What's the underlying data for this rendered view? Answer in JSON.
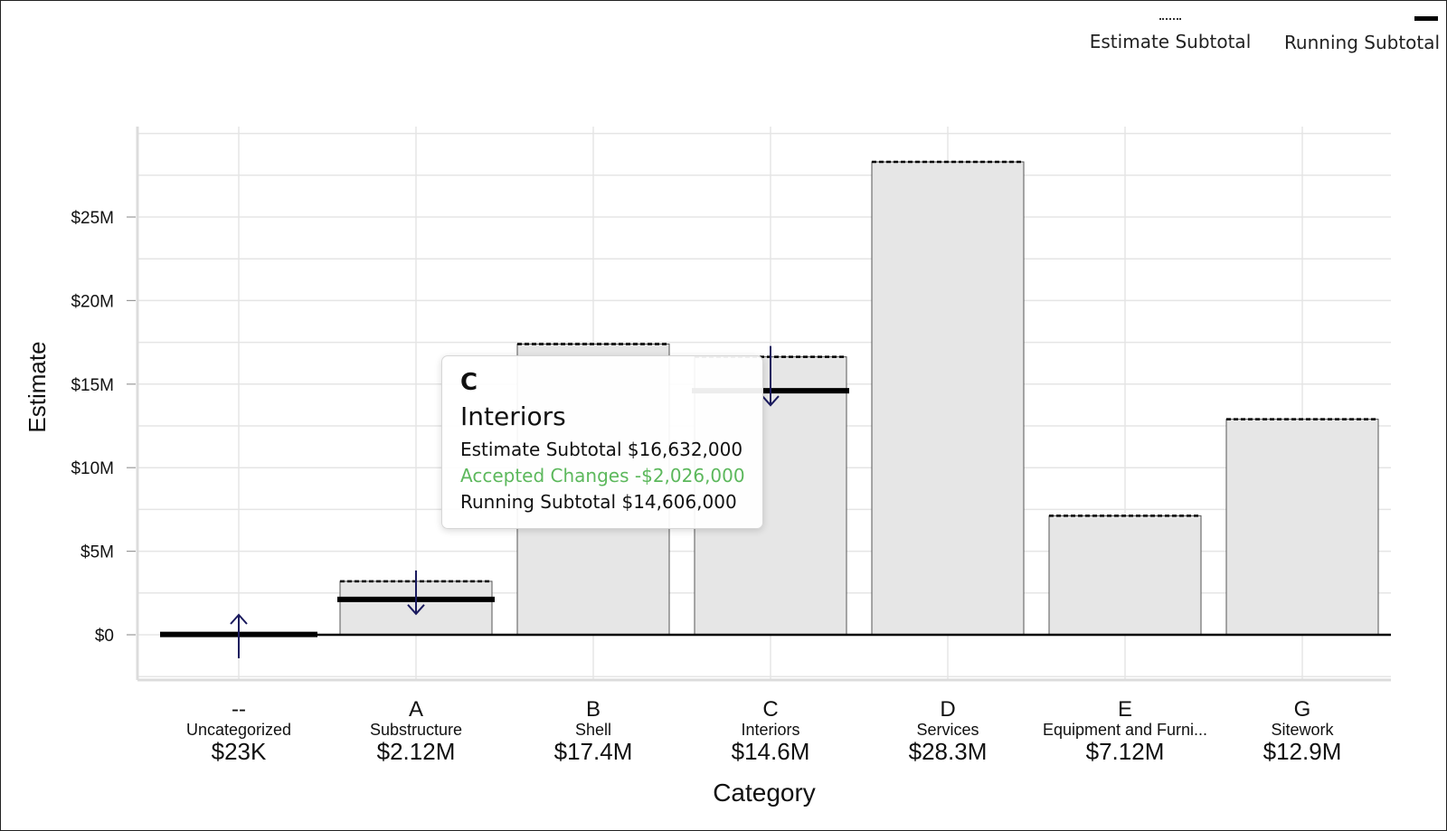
{
  "legend": {
    "estimate_label": "Estimate Subtotal",
    "running_label": "Running Subtotal"
  },
  "tooltip": {
    "code": "C",
    "name": "Interiors",
    "estimate_line": "Estimate Subtotal $16,632,000",
    "accepted_line": "Accepted Changes -$2,026,000",
    "running_line": "Running Subtotal $14,606,000"
  },
  "colors": {
    "bar_fill": "#e6e6e6",
    "bar_stroke": "#555555",
    "grid": "#e5e5e5",
    "running": "#000000",
    "arrow": "#1a1a5e",
    "accepted_text": "#5cb85c"
  },
  "chart_data": {
    "type": "bar",
    "xlabel": "Category",
    "ylabel": "Estimate",
    "ylim": [
      -2.8,
      30
    ],
    "y_ticks": [
      0,
      5,
      10,
      15,
      20,
      25
    ],
    "y_tick_labels": [
      "$0",
      "$5M",
      "$10M",
      "$15M",
      "$20M",
      "$25M"
    ],
    "unit": "millions USD",
    "grid": true,
    "legend_position": "top-right",
    "categories": [
      {
        "code": "--",
        "name": "Uncategorized",
        "total": "$23K"
      },
      {
        "code": "A",
        "name": "Substructure",
        "total": "$2.12M"
      },
      {
        "code": "B",
        "name": "Shell",
        "total": "$17.4M"
      },
      {
        "code": "C",
        "name": "Interiors",
        "total": "$14.6M"
      },
      {
        "code": "D",
        "name": "Services",
        "total": "$28.3M"
      },
      {
        "code": "E",
        "name": "Equipment and Furni...",
        "total": "$7.12M"
      },
      {
        "code": "G",
        "name": "Sitework",
        "total": "$12.9M"
      }
    ],
    "series": [
      {
        "name": "Estimate Subtotal",
        "values": [
          0,
          3.2,
          17.4,
          16.632,
          28.3,
          7.12,
          12.9
        ]
      },
      {
        "name": "Running Subtotal",
        "values": [
          0.023,
          2.12,
          17.4,
          14.606,
          28.3,
          7.12,
          12.9
        ]
      }
    ],
    "change_arrows": [
      {
        "category": "--",
        "direction": "up"
      },
      {
        "category": "A",
        "direction": "down"
      },
      {
        "category": "C",
        "direction": "down"
      }
    ]
  }
}
